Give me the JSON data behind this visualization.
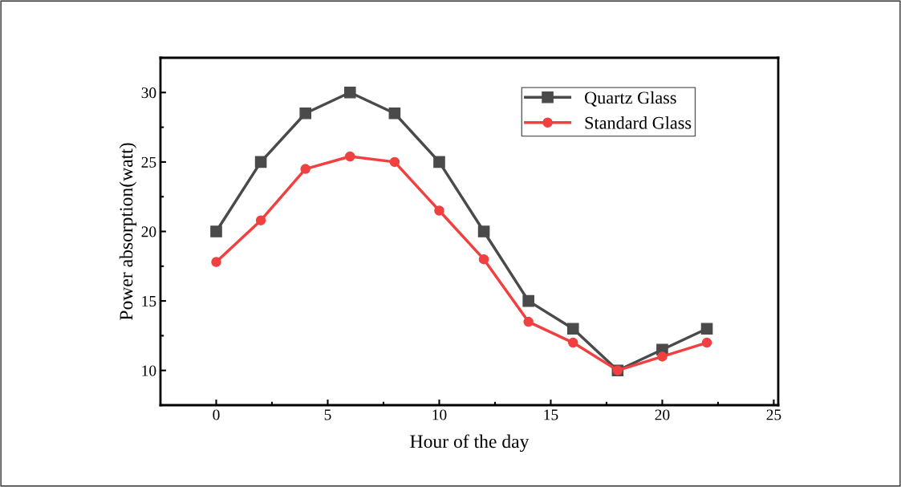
{
  "chart_data": {
    "type": "line",
    "xlabel": "Hour of the day",
    "ylabel": "Power absorption(watt)",
    "x": [
      0,
      2,
      4,
      6,
      8,
      10,
      12,
      14,
      16,
      18,
      20,
      22
    ],
    "series": [
      {
        "name": "Quartz Glass",
        "color": "#4a4a4a",
        "marker": "square",
        "values": [
          20,
          25,
          28.5,
          30,
          28.5,
          25,
          20,
          15,
          13,
          10,
          11.5,
          13
        ]
      },
      {
        "name": "Standard Glass",
        "color": "#f04040",
        "marker": "circle",
        "values": [
          17.8,
          20.8,
          24.5,
          25.4,
          25,
          21.5,
          18,
          13.5,
          12,
          10,
          11,
          12
        ]
      }
    ],
    "xlim": [
      -2.5,
      25.2
    ],
    "ylim": [
      7.5,
      32.5
    ],
    "xticks": [
      0,
      5,
      10,
      15,
      20,
      25
    ],
    "yticks": [
      10,
      15,
      20,
      25,
      30
    ],
    "grid": false,
    "legend": "top right",
    "line_style": "solid"
  }
}
